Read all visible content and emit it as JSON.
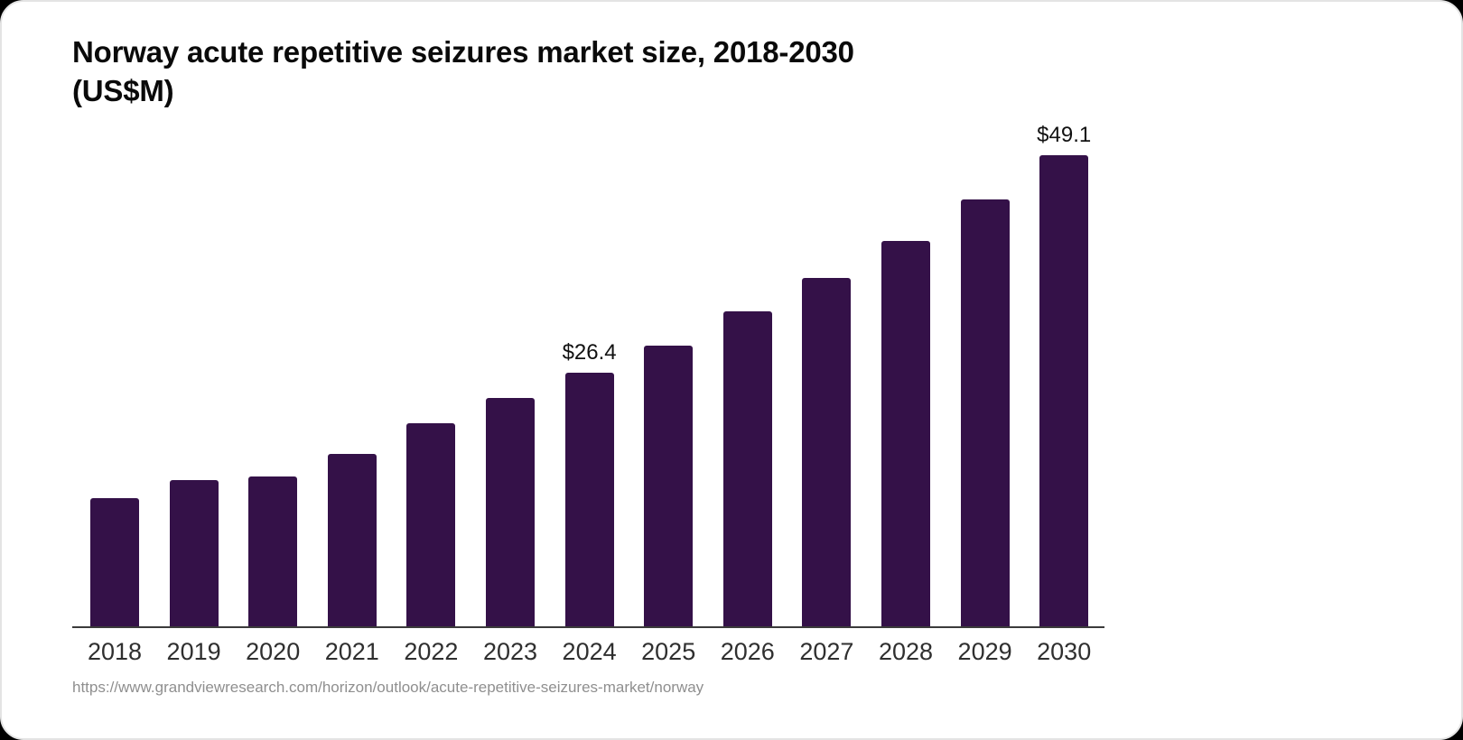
{
  "header": {
    "title_line1": "Norway acute repetitive seizures market size, 2018-2030",
    "title_line2": "(US$M)"
  },
  "footer": {
    "source_url": "https://www.grandviewresearch.com/horizon/outlook/acute-repetitive-seizures-market/norway"
  },
  "chart_data": {
    "type": "bar",
    "title": "Norway acute repetitive seizures market size, 2018-2030 (US$M)",
    "unit": "US$M",
    "categories": [
      "2018",
      "2019",
      "2020",
      "2021",
      "2022",
      "2023",
      "2024",
      "2025",
      "2026",
      "2027",
      "2028",
      "2029",
      "2030"
    ],
    "values": [
      13.4,
      15.2,
      15.6,
      18.0,
      21.2,
      23.8,
      26.4,
      29.3,
      32.8,
      36.3,
      40.2,
      44.5,
      49.1
    ],
    "data_labels": [
      null,
      null,
      null,
      null,
      null,
      null,
      "$26.4",
      null,
      null,
      null,
      null,
      null,
      "$49.1"
    ],
    "bar_color": "#341148",
    "axis_color": "#3b3b3b",
    "label_color": "#111111",
    "tick_color": "#2f2f2f",
    "ylim": [
      0,
      52
    ],
    "grid": false,
    "legend": false,
    "xlabel": "",
    "ylabel": ""
  }
}
